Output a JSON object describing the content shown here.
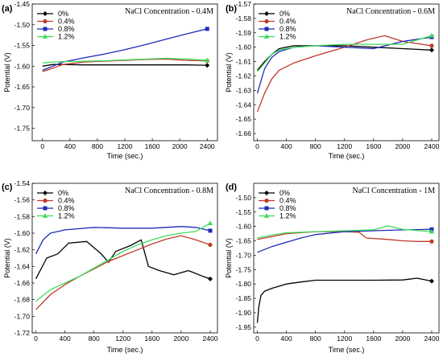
{
  "chart_data": [
    {
      "type": "line",
      "panel_label": "(a)",
      "title": "NaCl Concentration - 0.4M",
      "xlabel": "Time (sec.)",
      "ylabel": "Potential (V)",
      "xlim": [
        -150,
        2550
      ],
      "ylim": [
        -1.78,
        -1.45
      ],
      "xticks": [
        0,
        400,
        800,
        1200,
        1600,
        2000,
        2400
      ],
      "yticks": [
        -1.75,
        -1.7,
        -1.65,
        -1.6,
        -1.55,
        -1.5,
        -1.45
      ],
      "legend_position": "top-left",
      "series": [
        {
          "name": "0%",
          "color": "#000000",
          "marker": "diamond",
          "x": [
            0,
            150,
            300,
            600,
            900,
            1200,
            1500,
            1800,
            2100,
            2400
          ],
          "y": [
            -1.6,
            -1.596,
            -1.596,
            -1.597,
            -1.597,
            -1.597,
            -1.597,
            -1.597,
            -1.597,
            -1.598
          ]
        },
        {
          "name": "0.4%",
          "color": "#c0392b",
          "marker": "circle",
          "x": [
            0,
            150,
            300,
            600,
            900,
            1200,
            1500,
            1800,
            2100,
            2400
          ],
          "y": [
            -1.613,
            -1.605,
            -1.596,
            -1.59,
            -1.588,
            -1.586,
            -1.584,
            -1.583,
            -1.586,
            -1.587
          ]
        },
        {
          "name": "0.8%",
          "color": "#1f2bb5",
          "marker": "square",
          "x": [
            0,
            150,
            300,
            600,
            900,
            1200,
            1500,
            1800,
            2100,
            2400
          ],
          "y": [
            -1.61,
            -1.6,
            -1.59,
            -1.58,
            -1.571,
            -1.56,
            -1.548,
            -1.535,
            -1.522,
            -1.51
          ]
        },
        {
          "name": "1.2%",
          "color": "#3ddc5a",
          "marker": "triangle",
          "x": [
            0,
            150,
            300,
            600,
            900,
            1200,
            1500,
            1800,
            2100,
            2400
          ],
          "y": [
            -1.592,
            -1.59,
            -1.589,
            -1.588,
            -1.587,
            -1.585,
            -1.583,
            -1.581,
            -1.583,
            -1.586
          ]
        }
      ]
    },
    {
      "type": "line",
      "panel_label": "(b)",
      "title": "NaCl Concentration - 0.6M",
      "xlabel": "Time (sec.)",
      "ylabel": "Potential (V)",
      "xlim": [
        -50,
        2500
      ],
      "ylim": [
        -1.665,
        -1.57
      ],
      "xticks": [
        0,
        400,
        800,
        1200,
        1600,
        2000,
        2400
      ],
      "yticks": [
        -1.66,
        -1.65,
        -1.64,
        -1.63,
        -1.62,
        -1.61,
        -1.6,
        -1.59,
        -1.58,
        -1.57
      ],
      "legend_position": "top-left",
      "series": [
        {
          "name": "0%",
          "color": "#000000",
          "marker": "diamond",
          "x": [
            0,
            100,
            200,
            300,
            500,
            800,
            1200,
            1600,
            2000,
            2400
          ],
          "y": [
            -1.616,
            -1.61,
            -1.605,
            -1.601,
            -1.599,
            -1.599,
            -1.599,
            -1.6,
            -1.601,
            -1.602
          ]
        },
        {
          "name": "0.4%",
          "color": "#c0392b",
          "marker": "circle",
          "x": [
            0,
            100,
            200,
            300,
            500,
            800,
            1200,
            1500,
            1750,
            2000,
            2400
          ],
          "y": [
            -1.645,
            -1.632,
            -1.622,
            -1.616,
            -1.611,
            -1.606,
            -1.6,
            -1.595,
            -1.592,
            -1.596,
            -1.599
          ]
        },
        {
          "name": "0.8%",
          "color": "#1f2bb5",
          "marker": "square",
          "x": [
            0,
            100,
            200,
            300,
            500,
            800,
            1200,
            1600,
            2000,
            2400
          ],
          "y": [
            -1.632,
            -1.615,
            -1.607,
            -1.603,
            -1.6,
            -1.599,
            -1.6,
            -1.601,
            -1.596,
            -1.593
          ]
        },
        {
          "name": "1.2%",
          "color": "#3ddc5a",
          "marker": "triangle",
          "x": [
            0,
            100,
            200,
            300,
            500,
            800,
            1200,
            1600,
            2000,
            2400
          ],
          "y": [
            -1.617,
            -1.611,
            -1.605,
            -1.602,
            -1.6,
            -1.599,
            -1.598,
            -1.598,
            -1.598,
            -1.592
          ]
        }
      ]
    },
    {
      "type": "line",
      "panel_label": "(c)",
      "title": "NaCl Concentration - 0.8M",
      "xlabel": "Time (sec.)",
      "ylabel": "Potential (V)",
      "xlim": [
        -50,
        2500
      ],
      "ylim": [
        -1.72,
        -1.54
      ],
      "xticks": [
        0,
        400,
        800,
        1200,
        1600,
        2000,
        2400
      ],
      "yticks": [
        -1.72,
        -1.7,
        -1.68,
        -1.66,
        -1.64,
        -1.62,
        -1.6,
        -1.58,
        -1.56,
        -1.54
      ],
      "legend_position": "top-left",
      "series": [
        {
          "name": "0%",
          "color": "#000000",
          "marker": "diamond",
          "x": [
            0,
            150,
            300,
            450,
            700,
            900,
            1000,
            1100,
            1300,
            1450,
            1550,
            1700,
            1900,
            2100,
            2300,
            2400
          ],
          "y": [
            -1.655,
            -1.63,
            -1.625,
            -1.612,
            -1.61,
            -1.625,
            -1.635,
            -1.622,
            -1.615,
            -1.608,
            -1.64,
            -1.645,
            -1.65,
            -1.645,
            -1.652,
            -1.655
          ]
        },
        {
          "name": "0.4%",
          "color": "#c0392b",
          "marker": "circle",
          "x": [
            0,
            200,
            400,
            600,
            800,
            1000,
            1200,
            1400,
            1600,
            1800,
            2000,
            2200,
            2400
          ],
          "y": [
            -1.692,
            -1.674,
            -1.662,
            -1.652,
            -1.643,
            -1.634,
            -1.627,
            -1.62,
            -1.613,
            -1.607,
            -1.603,
            -1.608,
            -1.614
          ]
        },
        {
          "name": "0.8%",
          "color": "#1f2bb5",
          "marker": "square",
          "x": [
            0,
            100,
            200,
            400,
            800,
            1200,
            1600,
            2000,
            2200,
            2400
          ],
          "y": [
            -1.625,
            -1.608,
            -1.6,
            -1.596,
            -1.593,
            -1.594,
            -1.594,
            -1.592,
            -1.593,
            -1.597
          ]
        },
        {
          "name": "1.2%",
          "color": "#3ddc5a",
          "marker": "triangle",
          "x": [
            0,
            200,
            400,
            600,
            800,
            1000,
            1200,
            1400,
            1600,
            1800,
            2000,
            2200,
            2400
          ],
          "y": [
            -1.682,
            -1.668,
            -1.66,
            -1.652,
            -1.642,
            -1.632,
            -1.622,
            -1.614,
            -1.608,
            -1.603,
            -1.6,
            -1.598,
            -1.588
          ]
        }
      ]
    },
    {
      "type": "line",
      "panel_label": "(d)",
      "title": "NaCl Concentration - 1M",
      "xlabel": "Time (sec.)",
      "ylabel": "Potential (V)",
      "xlim": [
        -50,
        2500
      ],
      "ylim": [
        -1.97,
        -1.45
      ],
      "xticks": [
        0,
        400,
        800,
        1200,
        1600,
        2000,
        2400
      ],
      "yticks": [
        -1.95,
        -1.9,
        -1.85,
        -1.8,
        -1.75,
        -1.7,
        -1.65,
        -1.6,
        -1.55,
        -1.5
      ],
      "legend_position": "top-left",
      "series": [
        {
          "name": "0%",
          "color": "#000000",
          "marker": "diamond",
          "x": [
            0,
            20,
            50,
            100,
            200,
            400,
            600,
            800,
            1200,
            1600,
            2000,
            2200,
            2400
          ],
          "y": [
            -1.935,
            -1.88,
            -1.84,
            -1.825,
            -1.815,
            -1.8,
            -1.793,
            -1.787,
            -1.787,
            -1.787,
            -1.786,
            -1.78,
            -1.79
          ]
        },
        {
          "name": "0.4%",
          "color": "#c0392b",
          "marker": "circle",
          "x": [
            0,
            200,
            400,
            800,
            1200,
            1400,
            1500,
            1800,
            2000,
            2200,
            2400
          ],
          "y": [
            -1.645,
            -1.635,
            -1.625,
            -1.618,
            -1.618,
            -1.62,
            -1.64,
            -1.645,
            -1.65,
            -1.652,
            -1.652
          ]
        },
        {
          "name": "0.8%",
          "color": "#1f2bb5",
          "marker": "square",
          "x": [
            0,
            200,
            400,
            600,
            800,
            1200,
            1600,
            2000,
            2400
          ],
          "y": [
            -1.69,
            -1.67,
            -1.655,
            -1.64,
            -1.628,
            -1.618,
            -1.615,
            -1.612,
            -1.61
          ]
        },
        {
          "name": "1.2%",
          "color": "#3ddc5a",
          "marker": "triangle",
          "x": [
            0,
            200,
            400,
            800,
            1200,
            1600,
            1800,
            2000,
            2400
          ],
          "y": [
            -1.64,
            -1.63,
            -1.622,
            -1.618,
            -1.615,
            -1.612,
            -1.598,
            -1.61,
            -1.618
          ]
        }
      ]
    }
  ]
}
